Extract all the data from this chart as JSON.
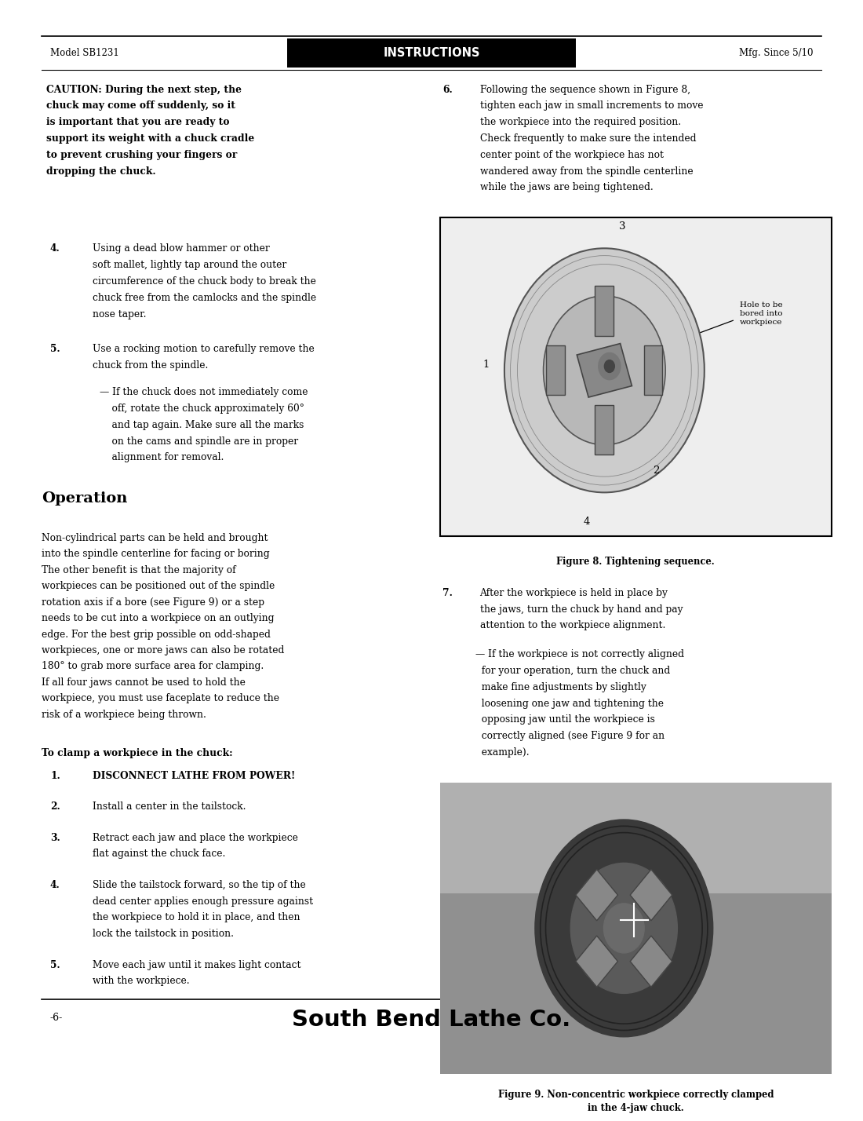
{
  "page_width": 10.8,
  "page_height": 13.97,
  "bg_color": "#ffffff",
  "header_left": "Model SB1231",
  "header_center": "INSTRUCTIONS",
  "header_right": "Mfg. Since 5/10",
  "footer_left": "-6-",
  "footer_center": "South Bend Lathe Co.",
  "caution_lines": [
    "CAUTION: During the next step, the",
    "chuck may come off suddenly, so it",
    "is important that you are ready to",
    "support its weight with a chuck cradle",
    "to prevent crushing your fingers or",
    "dropping the chuck."
  ],
  "item4_num": "4.",
  "item4_lines": [
    "Using a dead blow hammer or other",
    "soft mallet, lightly tap around the outer",
    "circumference of the chuck body to break the",
    "chuck free from the camlocks and the spindle",
    "nose taper."
  ],
  "item5_num": "5.",
  "item5_lines": [
    "Use a rocking motion to carefully remove the",
    "chuck from the spindle."
  ],
  "item5_sub_lines": [
    "— If the chuck does not immediately come",
    "    off, rotate the chuck approximately 60°",
    "    and tap again. Make sure all the marks",
    "    on the cams and spindle are in proper",
    "    alignment for removal."
  ],
  "op_title": "Operation",
  "op_lines": [
    "Non-cylindrical parts can be held and brought",
    "into the spindle centerline for facing or boring",
    "The other benefit is that the majority of",
    "workpieces can be positioned out of the spindle",
    "rotation axis if a bore (see Figure 9) or a step",
    "needs to be cut into a workpiece on an outlying",
    "edge. For the best grip possible on odd-shaped",
    "workpieces, one or more jaws can also be rotated",
    "180° to grab more surface area for clamping.",
    "If all four jaws cannot be used to hold the",
    "workpiece, you must use faceplate to reduce the",
    "risk of a workpiece being thrown."
  ],
  "clamp_title": "To clamp a workpiece in the chuck:",
  "clamp_items": [
    {
      "num": "1.",
      "lines": [
        "DISCONNECT LATHE FROM POWER!"
      ],
      "bold": true
    },
    {
      "num": "2.",
      "lines": [
        "Install a center in the tailstock."
      ],
      "bold": false
    },
    {
      "num": "3.",
      "lines": [
        "Retract each jaw and place the workpiece",
        "flat against the chuck face."
      ],
      "bold": false
    },
    {
      "num": "4.",
      "lines": [
        "Slide the tailstock forward, so the tip of the",
        "dead center applies enough pressure against",
        "the workpiece to hold it in place, and then",
        "lock the tailstock in position."
      ],
      "bold": false
    },
    {
      "num": "5.",
      "lines": [
        "Move each jaw until it makes light contact",
        "with the workpiece."
      ],
      "bold": false
    }
  ],
  "item6_num": "6.",
  "item6_lines": [
    "Following the sequence shown in Figure 8,",
    "tighten each jaw in small increments to move",
    "the workpiece into the required position.",
    "Check frequently to make sure the intended",
    "center point of the workpiece has not",
    "wandered away from the spindle centerline",
    "while the jaws are being tightened."
  ],
  "fig8_caption": "Figure 8. Tightening sequence.",
  "item7_num": "7.",
  "item7_lines": [
    "After the workpiece is held in place by",
    "the jaws, turn the chuck by hand and pay",
    "attention to the workpiece alignment."
  ],
  "item7_sub_lines": [
    "— If the workpiece is not correctly aligned",
    "  for your operation, turn the chuck and",
    "  make fine adjustments by slightly",
    "  loosening one jaw and tightening the",
    "  opposing jaw until the workpiece is",
    "  correctly aligned (see Figure 9 for an",
    "  example)."
  ],
  "fig9_caption_line1": "Figure 9. Non-concentric workpiece correctly clamped",
  "fig9_caption_line2": "in the 4-jaw chuck."
}
